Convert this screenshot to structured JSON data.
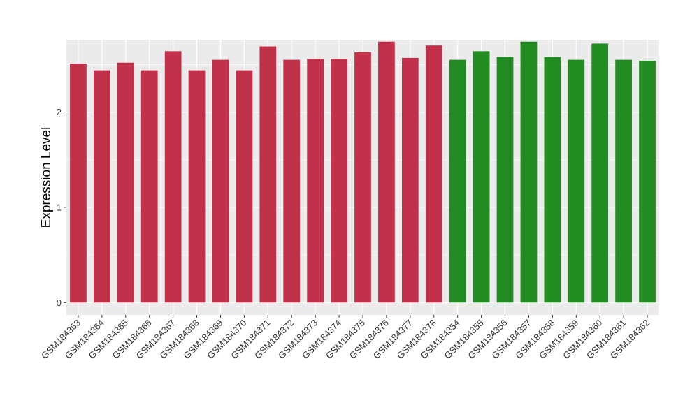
{
  "chart_data": {
    "type": "bar",
    "ylabel": "Expression Level",
    "xlabel": "",
    "ylim": [
      -0.13,
      2.76
    ],
    "y_ticks": [
      0,
      1,
      2
    ],
    "grid": true,
    "legend": "none",
    "categories": [
      "GSM184363",
      "GSM184364",
      "GSM184365",
      "GSM184366",
      "GSM184367",
      "GSM184368",
      "GSM184369",
      "GSM184370",
      "GSM184371",
      "GSM184372",
      "GSM184373",
      "GSM184374",
      "GSM184375",
      "GSM184376",
      "GSM184377",
      "GSM184378",
      "GSM184354",
      "GSM184355",
      "GSM184356",
      "GSM184357",
      "GSM184358",
      "GSM184359",
      "GSM184360",
      "GSM184361",
      "GSM184362"
    ],
    "values": [
      2.51,
      2.44,
      2.52,
      2.44,
      2.64,
      2.44,
      2.55,
      2.44,
      2.69,
      2.55,
      2.56,
      2.56,
      2.63,
      2.74,
      2.57,
      2.7,
      2.55,
      2.64,
      2.58,
      2.74,
      2.58,
      2.55,
      2.72,
      2.55,
      2.54
    ],
    "colors": [
      "#C1314A",
      "#C1314A",
      "#C1314A",
      "#C1314A",
      "#C1314A",
      "#C1314A",
      "#C1314A",
      "#C1314A",
      "#C1314A",
      "#C1314A",
      "#C1314A",
      "#C1314A",
      "#C1314A",
      "#C1314A",
      "#C1314A",
      "#C1314A",
      "#228B22",
      "#228B22",
      "#228B22",
      "#228B22",
      "#228B22",
      "#228B22",
      "#228B22",
      "#228B22",
      "#228B22"
    ],
    "panel_background": "#EBEBEB",
    "grid_color": "#FFFFFF"
  }
}
